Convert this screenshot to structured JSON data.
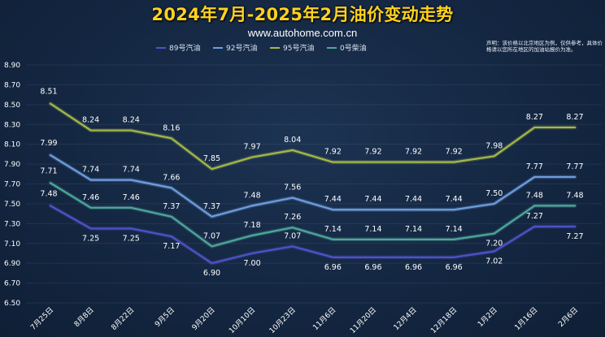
{
  "header": {
    "title": "2024年7月-2025年2月油价变动走势",
    "subtitle": "www.autohome.com.cn",
    "note": "声明：该价格以北京地区为例，仅供参考，具体价格请以您所在地区的加油站报价为准。"
  },
  "chart_data": {
    "type": "line",
    "title": "2024年7月-2025年2月油价变动走势",
    "xlabel": "",
    "ylabel": "",
    "categories": [
      "7月25日",
      "8月8日",
      "8月22日",
      "9月5日",
      "9月20日",
      "10月10日",
      "10月23日",
      "11月6日",
      "11月20日",
      "12月4日",
      "12月18日",
      "1月2日",
      "1月16日",
      "2月6日"
    ],
    "ylim": [
      6.5,
      8.9
    ],
    "yticks": [
      "6.50",
      "6.70",
      "6.90",
      "7.10",
      "7.30",
      "7.50",
      "7.70",
      "7.90",
      "8.10",
      "8.30",
      "8.50",
      "8.70",
      "8.90"
    ],
    "grid": true,
    "legend_position": "top-center",
    "series": [
      {
        "name": "89号汽油",
        "color": "#4f52c9",
        "values": [
          7.48,
          7.25,
          7.25,
          7.17,
          6.9,
          7.0,
          7.07,
          6.96,
          6.96,
          6.96,
          6.96,
          7.02,
          7.27,
          7.27
        ],
        "labels": [
          "7.48",
          "7.25",
          "7.25",
          "7.17",
          "6.90",
          "7.00",
          "7.07",
          "6.96",
          "6.96",
          "6.96",
          "6.96",
          "7.02",
          "7.27",
          "7.27"
        ]
      },
      {
        "name": "92号汽油",
        "color": "#6e9ee0",
        "values": [
          7.99,
          7.74,
          7.74,
          7.66,
          7.37,
          7.48,
          7.56,
          7.44,
          7.44,
          7.44,
          7.44,
          7.5,
          7.77,
          7.77
        ],
        "labels": [
          "7.99",
          "7.74",
          "7.74",
          "7.66",
          "7.37",
          "7.48",
          "7.56",
          "7.44",
          "7.44",
          "7.44",
          "7.44",
          "7.50",
          "7.77",
          "7.77"
        ]
      },
      {
        "name": "95号汽油",
        "color": "#a5b84a",
        "values": [
          8.51,
          8.24,
          8.24,
          8.16,
          7.85,
          7.97,
          8.04,
          7.92,
          7.92,
          7.92,
          7.92,
          7.98,
          8.27,
          8.27
        ],
        "labels": [
          "8.51",
          "8.24",
          "8.24",
          "8.16",
          "7.85",
          "7.97",
          "8.04",
          "7.92",
          "7.92",
          "7.92",
          "7.92",
          "7.98",
          "8.27",
          "8.27"
        ]
      },
      {
        "name": "0号柴油",
        "color": "#4ea89a",
        "values": [
          7.71,
          7.46,
          7.46,
          7.37,
          7.07,
          7.18,
          7.26,
          7.14,
          7.14,
          7.14,
          7.14,
          7.2,
          7.48,
          7.48
        ],
        "labels": [
          "7.71",
          "7.46",
          "7.46",
          "7.37",
          "7.07",
          "7.18",
          "7.26",
          "7.14",
          "7.14",
          "7.14",
          "7.14",
          "7.20",
          "7.48",
          "7.48"
        ]
      }
    ]
  }
}
